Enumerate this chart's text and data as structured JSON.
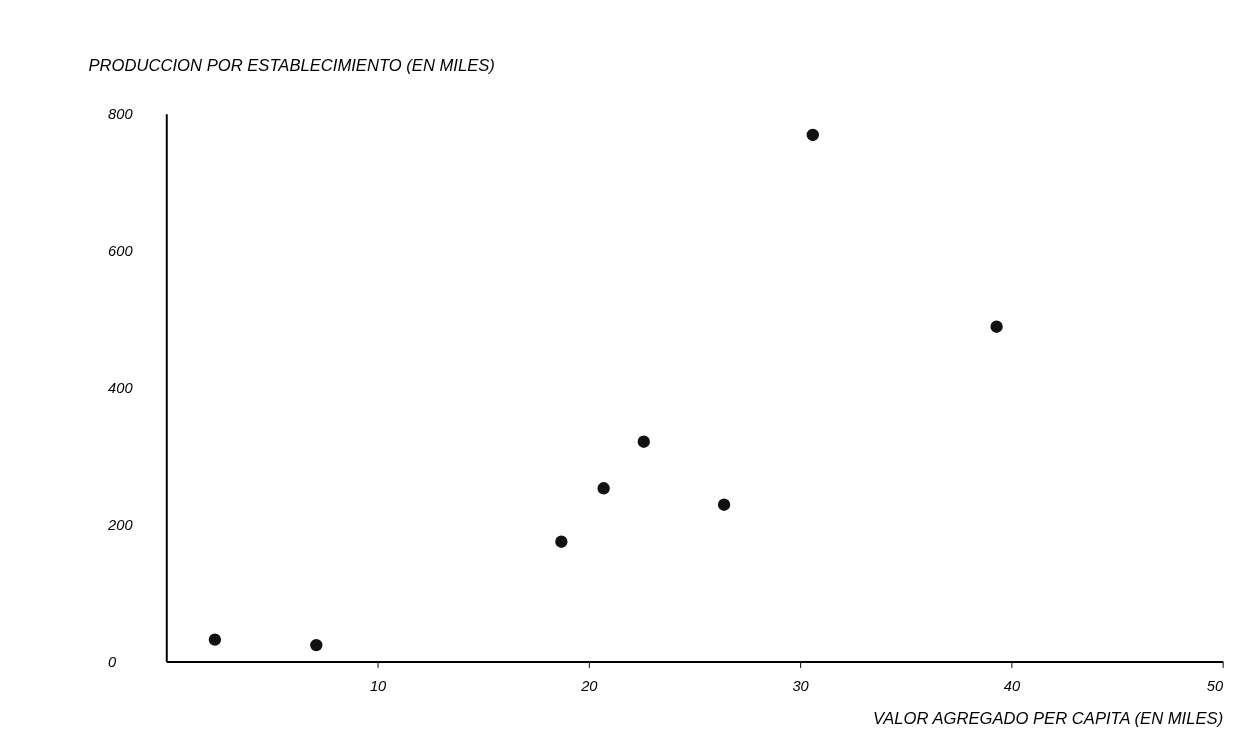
{
  "chart_data": {
    "type": "scatter",
    "xlabel": "VALOR AGREGADO PER CAPITA (EN MILES)",
    "ylabel": "PRODUCCION POR ESTABLECIMIENTO (EN MILES)",
    "x": [
      2.3,
      7.1,
      18.7,
      20.7,
      22.6,
      26.4,
      30.6,
      39.3
    ],
    "series": [
      {
        "color": "#111111",
        "values": [
          32,
          24,
          175,
          253,
          321,
          229,
          769,
          489
        ]
      }
    ],
    "xlim": [
      0,
      50
    ],
    "xticks": [
      10,
      20,
      30,
      40,
      50
    ],
    "ylim": [
      0,
      800
    ],
    "yticks": [
      0,
      200,
      400,
      600,
      800
    ],
    "grid": false,
    "marker": "circle",
    "legend": false
  }
}
